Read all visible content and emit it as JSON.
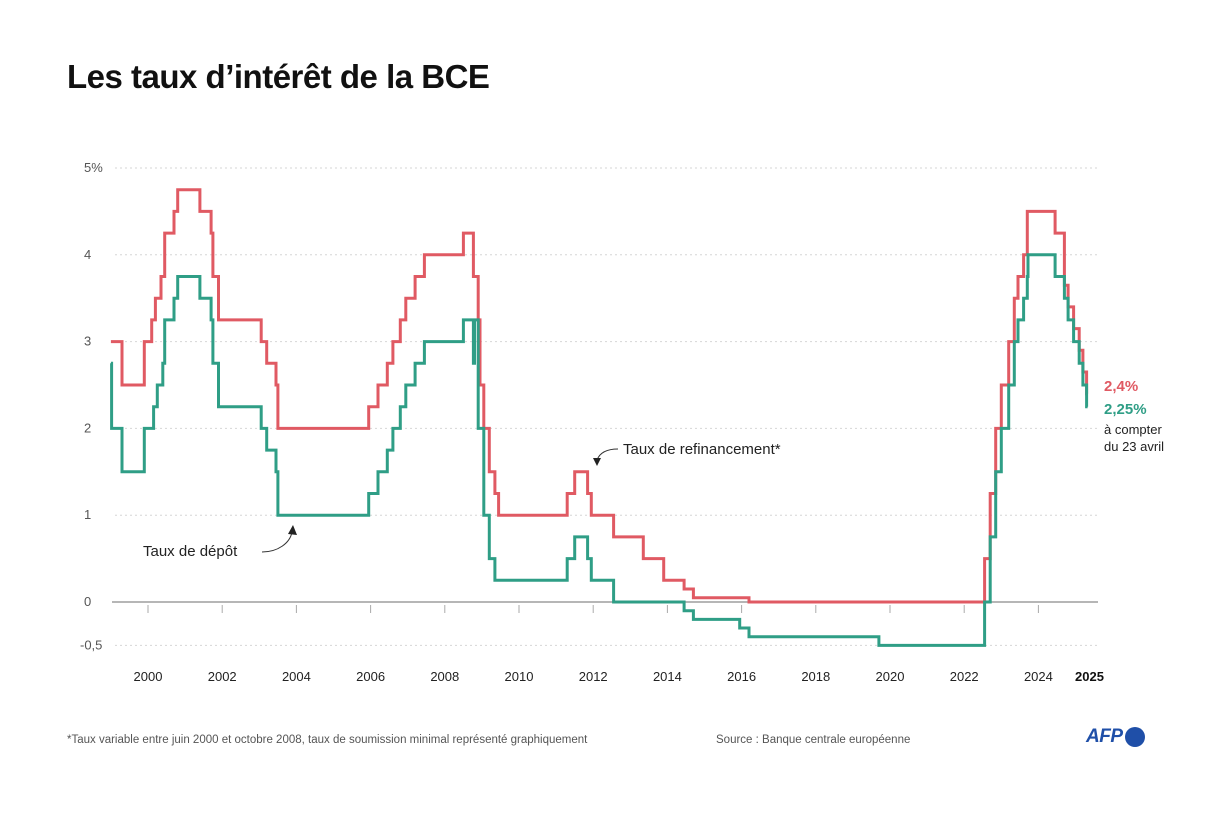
{
  "title": "Les taux d’intérêt de la BCE",
  "footnote": "*Taux variable entre juin 2000 et octobre 2008, taux de soumission minimal représenté graphiquement",
  "source": "Source : Banque centrale européenne",
  "logo": {
    "text": "AFP",
    "color": "#1f4fa8"
  },
  "annotations": {
    "refi_label": "Taux de refinancement*",
    "depot_label": "Taux de dépôt",
    "end_refi": "2,4%",
    "end_depot": "2,25%",
    "end_note_line1": "à compter",
    "end_note_line2": "du 23 avril"
  },
  "colors": {
    "refi": "#e05a63",
    "depot": "#2f9e86",
    "grid": "#d6d6d6",
    "axis": "#8a8a8a"
  },
  "chart_data": {
    "type": "line",
    "step": true,
    "title": "Les taux d’intérêt de la BCE",
    "xlabel": "",
    "ylabel": "%",
    "xlim": [
      1999.0,
      2025.3
    ],
    "ylim": [
      -0.5,
      5
    ],
    "yticks": [
      {
        "value": 5,
        "label": "5%"
      },
      {
        "value": 4,
        "label": "4"
      },
      {
        "value": 3,
        "label": "3"
      },
      {
        "value": 2,
        "label": "2"
      },
      {
        "value": 1,
        "label": "1"
      },
      {
        "value": 0,
        "label": "0"
      },
      {
        "value": -0.5,
        "label": "-0,5"
      }
    ],
    "xticks": [
      {
        "value": 2000,
        "label": "2000"
      },
      {
        "value": 2002,
        "label": "2002"
      },
      {
        "value": 2004,
        "label": "2004"
      },
      {
        "value": 2006,
        "label": "2006"
      },
      {
        "value": 2008,
        "label": "2008"
      },
      {
        "value": 2010,
        "label": "2010"
      },
      {
        "value": 2012,
        "label": "2012"
      },
      {
        "value": 2014,
        "label": "2014"
      },
      {
        "value": 2016,
        "label": "2016"
      },
      {
        "value": 2018,
        "label": "2018"
      },
      {
        "value": 2020,
        "label": "2020"
      },
      {
        "value": 2022,
        "label": "2022"
      },
      {
        "value": 2024,
        "label": "2024"
      },
      {
        "value": 2025,
        "label": "2025",
        "bold": true
      }
    ],
    "grid": "horizontal dotted",
    "series": [
      {
        "name": "Taux de refinancement",
        "color": "#e05a63",
        "points": [
          [
            1999.0,
            3.0
          ],
          [
            1999.3,
            2.5
          ],
          [
            1999.9,
            3.0
          ],
          [
            2000.1,
            3.25
          ],
          [
            2000.2,
            3.5
          ],
          [
            2000.35,
            3.75
          ],
          [
            2000.45,
            4.25
          ],
          [
            2000.7,
            4.5
          ],
          [
            2000.8,
            4.75
          ],
          [
            2001.4,
            4.5
          ],
          [
            2001.7,
            4.25
          ],
          [
            2001.75,
            3.75
          ],
          [
            2001.9,
            3.25
          ],
          [
            2003.05,
            3.0
          ],
          [
            2003.2,
            2.75
          ],
          [
            2003.45,
            2.5
          ],
          [
            2003.5,
            2.0
          ],
          [
            2005.95,
            2.25
          ],
          [
            2006.2,
            2.5
          ],
          [
            2006.45,
            2.75
          ],
          [
            2006.6,
            3.0
          ],
          [
            2006.8,
            3.25
          ],
          [
            2006.95,
            3.5
          ],
          [
            2007.2,
            3.75
          ],
          [
            2007.45,
            4.0
          ],
          [
            2008.5,
            4.25
          ],
          [
            2008.77,
            3.75
          ],
          [
            2008.9,
            3.25
          ],
          [
            2008.95,
            2.5
          ],
          [
            2009.05,
            2.0
          ],
          [
            2009.2,
            1.5
          ],
          [
            2009.35,
            1.25
          ],
          [
            2009.45,
            1.0
          ],
          [
            2011.3,
            1.25
          ],
          [
            2011.5,
            1.5
          ],
          [
            2011.85,
            1.25
          ],
          [
            2011.95,
            1.0
          ],
          [
            2012.55,
            0.75
          ],
          [
            2013.35,
            0.5
          ],
          [
            2013.9,
            0.25
          ],
          [
            2014.45,
            0.15
          ],
          [
            2014.7,
            0.05
          ],
          [
            2016.2,
            0.0
          ],
          [
            2022.55,
            0.5
          ],
          [
            2022.7,
            1.25
          ],
          [
            2022.85,
            2.0
          ],
          [
            2023.0,
            2.5
          ],
          [
            2023.2,
            3.0
          ],
          [
            2023.35,
            3.5
          ],
          [
            2023.45,
            3.75
          ],
          [
            2023.6,
            4.0
          ],
          [
            2023.7,
            4.25
          ],
          [
            2023.7,
            4.5
          ],
          [
            2024.45,
            4.25
          ],
          [
            2024.7,
            3.65
          ],
          [
            2024.8,
            3.4
          ],
          [
            2024.95,
            3.15
          ],
          [
            2025.1,
            2.9
          ],
          [
            2025.2,
            2.65
          ],
          [
            2025.3,
            2.4
          ]
        ],
        "end_value": 2.4,
        "end_label": "2,4%"
      },
      {
        "name": "Taux de dépôt",
        "color": "#2f9e86",
        "points": [
          [
            1999.0,
            2.75
          ],
          [
            1999.02,
            2.0
          ],
          [
            1999.3,
            1.5
          ],
          [
            1999.9,
            2.0
          ],
          [
            2000.15,
            2.25
          ],
          [
            2000.25,
            2.5
          ],
          [
            2000.4,
            2.75
          ],
          [
            2000.45,
            3.25
          ],
          [
            2000.7,
            3.5
          ],
          [
            2000.8,
            3.75
          ],
          [
            2001.4,
            3.5
          ],
          [
            2001.7,
            3.25
          ],
          [
            2001.75,
            2.75
          ],
          [
            2001.9,
            2.25
          ],
          [
            2003.05,
            2.0
          ],
          [
            2003.2,
            1.75
          ],
          [
            2003.45,
            1.5
          ],
          [
            2003.5,
            1.0
          ],
          [
            2005.95,
            1.25
          ],
          [
            2006.2,
            1.5
          ],
          [
            2006.45,
            1.75
          ],
          [
            2006.6,
            2.0
          ],
          [
            2006.8,
            2.25
          ],
          [
            2006.95,
            2.5
          ],
          [
            2007.2,
            2.75
          ],
          [
            2007.45,
            3.0
          ],
          [
            2008.5,
            3.25
          ],
          [
            2008.77,
            2.75
          ],
          [
            2008.8,
            3.25
          ],
          [
            2008.9,
            2.0
          ],
          [
            2009.05,
            1.0
          ],
          [
            2009.2,
            0.5
          ],
          [
            2009.35,
            0.25
          ],
          [
            2011.3,
            0.5
          ],
          [
            2011.5,
            0.75
          ],
          [
            2011.85,
            0.5
          ],
          [
            2011.95,
            0.25
          ],
          [
            2012.55,
            0.0
          ],
          [
            2014.45,
            -0.1
          ],
          [
            2014.7,
            -0.2
          ],
          [
            2015.95,
            -0.3
          ],
          [
            2016.2,
            -0.4
          ],
          [
            2019.7,
            -0.5
          ],
          [
            2022.55,
            0.0
          ],
          [
            2022.7,
            0.75
          ],
          [
            2022.85,
            1.5
          ],
          [
            2023.0,
            2.0
          ],
          [
            2023.2,
            2.5
          ],
          [
            2023.35,
            3.0
          ],
          [
            2023.45,
            3.25
          ],
          [
            2023.6,
            3.5
          ],
          [
            2023.7,
            3.75
          ],
          [
            2023.72,
            4.0
          ],
          [
            2024.45,
            3.75
          ],
          [
            2024.7,
            3.5
          ],
          [
            2024.8,
            3.25
          ],
          [
            2024.95,
            3.0
          ],
          [
            2025.1,
            2.75
          ],
          [
            2025.2,
            2.5
          ],
          [
            2025.3,
            2.25
          ]
        ],
        "end_value": 2.25,
        "end_label": "2,25%"
      }
    ],
    "annotations": [
      {
        "text": "Taux de refinancement*",
        "x": 2011.9,
        "y": 1.5
      },
      {
        "text": "Taux de dépôt",
        "x": 2003.6,
        "y": 1.0
      },
      {
        "text": "2,4% / 2,25% à compter du 23 avril",
        "x": 2025.3,
        "y": 2.3
      }
    ]
  }
}
